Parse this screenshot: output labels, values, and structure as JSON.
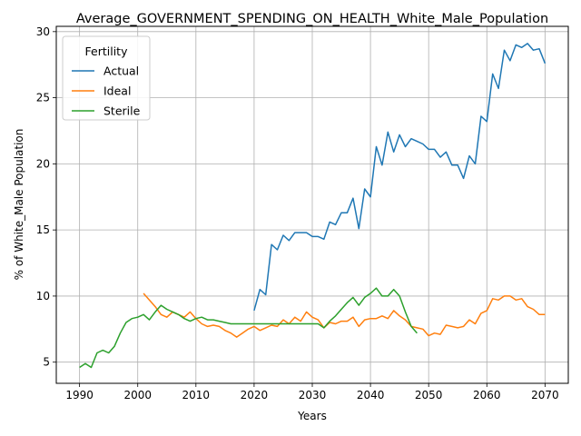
{
  "chart_data": {
    "type": "line",
    "title": "Average_GOVERNMENT_SPENDING_ON_HEALTH_White_Male_Population",
    "xlabel": "Years",
    "ylabel": "% of White_Male Population",
    "xlim": [
      1986,
      2074
    ],
    "ylim": [
      3.4,
      30.4
    ],
    "xticks": [
      1990,
      2000,
      2010,
      2020,
      2030,
      2040,
      2050,
      2060,
      2070
    ],
    "yticks": [
      5,
      10,
      15,
      20,
      25,
      30
    ],
    "grid": true,
    "legend": {
      "title": "Fertility",
      "placement": "top-left"
    },
    "series": [
      {
        "name": "Actual",
        "color": "#1f77b4",
        "x": [
          2020,
          2021,
          2022,
          2023,
          2024,
          2025,
          2026,
          2027,
          2028,
          2029,
          2030,
          2031,
          2032,
          2033,
          2034,
          2035,
          2036,
          2037,
          2038,
          2039,
          2040,
          2041,
          2042,
          2043,
          2044,
          2045,
          2046,
          2047,
          2048,
          2049,
          2050,
          2051,
          2052,
          2053,
          2054,
          2055,
          2056,
          2057,
          2058,
          2059,
          2060,
          2061,
          2062,
          2063,
          2064,
          2065,
          2066,
          2067,
          2068,
          2069,
          2070
        ],
        "values": [
          8.9,
          10.5,
          10.1,
          13.9,
          13.5,
          14.6,
          14.2,
          14.8,
          14.8,
          14.8,
          14.5,
          14.5,
          14.3,
          15.6,
          15.4,
          16.3,
          16.3,
          17.4,
          15.1,
          18.1,
          17.5,
          21.3,
          19.9,
          22.4,
          20.9,
          22.2,
          21.3,
          21.9,
          21.7,
          21.5,
          21.1,
          21.1,
          20.5,
          20.9,
          19.9,
          19.9,
          18.9,
          20.6,
          20.0,
          23.6,
          23.2,
          26.8,
          25.7,
          28.6,
          27.8,
          29.0,
          28.8,
          29.1,
          28.6,
          28.7,
          27.6
        ]
      },
      {
        "name": "Ideal",
        "color": "#ff7f0e",
        "x": [
          2001,
          2002,
          2003,
          2004,
          2005,
          2006,
          2007,
          2008,
          2009,
          2010,
          2011,
          2012,
          2013,
          2014,
          2015,
          2016,
          2017,
          2018,
          2019,
          2020,
          2021,
          2022,
          2023,
          2024,
          2025,
          2026,
          2027,
          2028,
          2029,
          2030,
          2031,
          2032,
          2033,
          2034,
          2035,
          2036,
          2037,
          2038,
          2039,
          2040,
          2041,
          2042,
          2043,
          2044,
          2045,
          2046,
          2047,
          2048,
          2049,
          2050,
          2051,
          2052,
          2053,
          2054,
          2055,
          2056,
          2057,
          2058,
          2059,
          2060,
          2061,
          2062,
          2063,
          2064,
          2065,
          2066,
          2067,
          2068,
          2069,
          2070
        ],
        "values": [
          10.2,
          9.7,
          9.2,
          8.6,
          8.4,
          8.8,
          8.6,
          8.4,
          8.8,
          8.3,
          7.9,
          7.7,
          7.8,
          7.7,
          7.4,
          7.2,
          6.9,
          7.2,
          7.5,
          7.7,
          7.4,
          7.6,
          7.8,
          7.7,
          8.2,
          7.9,
          8.4,
          8.1,
          8.8,
          8.4,
          8.2,
          7.6,
          8.0,
          7.9,
          8.1,
          8.1,
          8.4,
          7.7,
          8.2,
          8.3,
          8.3,
          8.5,
          8.3,
          8.9,
          8.5,
          8.2,
          7.7,
          7.6,
          7.5,
          7.0,
          7.2,
          7.1,
          7.8,
          7.7,
          7.6,
          7.7,
          8.2,
          7.9,
          8.7,
          8.9,
          9.8,
          9.7,
          10.0,
          10.0,
          9.7,
          9.8,
          9.2,
          9.0,
          8.6,
          8.6
        ]
      },
      {
        "name": "Sterile",
        "color": "#2ca02c",
        "x": [
          1990,
          1991,
          1992,
          1993,
          1994,
          1995,
          1996,
          1997,
          1998,
          1999,
          2000,
          2001,
          2002,
          2003,
          2004,
          2005,
          2006,
          2007,
          2008,
          2009,
          2010,
          2011,
          2012,
          2013,
          2014,
          2015,
          2016,
          2017,
          2018,
          2019,
          2020,
          2021,
          2022,
          2023,
          2024,
          2025,
          2026,
          2027,
          2028,
          2029,
          2030,
          2031,
          2032,
          2033,
          2034,
          2035,
          2036,
          2037,
          2038,
          2039,
          2040,
          2041,
          2042,
          2043,
          2044,
          2045,
          2046,
          2047,
          2048
        ],
        "values": [
          4.6,
          4.9,
          4.6,
          5.7,
          5.9,
          5.7,
          6.2,
          7.2,
          8.0,
          8.3,
          8.4,
          8.6,
          8.2,
          8.8,
          9.3,
          9.0,
          8.8,
          8.6,
          8.3,
          8.1,
          8.3,
          8.4,
          8.2,
          8.2,
          8.1,
          8.0,
          7.9,
          7.9,
          7.9,
          7.9,
          7.9,
          7.9,
          7.9,
          7.9,
          7.9,
          7.9,
          7.9,
          7.9,
          7.9,
          7.9,
          7.9,
          7.9,
          7.6,
          8.1,
          8.5,
          9.0,
          9.5,
          9.9,
          9.3,
          9.9,
          10.2,
          10.6,
          10.0,
          10.0,
          10.5,
          10.0,
          8.8,
          7.7,
          7.2
        ]
      }
    ]
  }
}
